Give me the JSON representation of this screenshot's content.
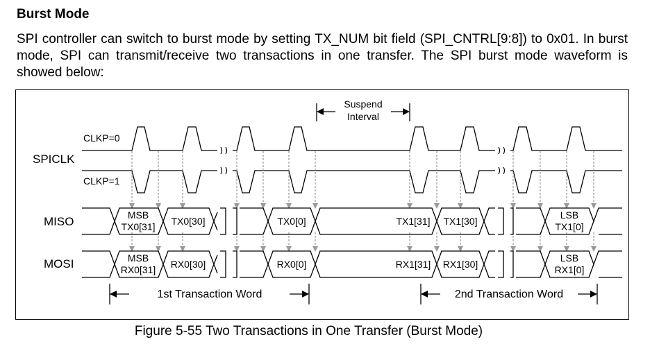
{
  "section": {
    "title": "Burst  Mode",
    "body": "SPI controller can switch to burst mode by setting TX_NUM bit field (SPI_CNTRL[9:8]) to 0x01. In burst mode, SPI can transmit/receive two transactions in one transfer. The SPI burst mode waveform is showed below:"
  },
  "figure": {
    "caption": "Figure 5-55 Two Transactions in One Transfer (Burst Mode)",
    "suspend_label_line1": "Suspend",
    "suspend_label_line2": "Interval",
    "signal_labels": {
      "spiclk": "SPICLK",
      "miso": "MISO",
      "mosi": "MOSI"
    },
    "clock_labels": {
      "clkp0": "CLKP=0",
      "clkp1": "CLKP=1"
    },
    "miso_cells": {
      "c1a": "MSB",
      "c1b": "TX0[31]",
      "c2": "TX0[30]",
      "c3": "TX0[0]",
      "c4": "TX1[31]",
      "c5": "TX1[30]",
      "c6a": "LSB",
      "c6b": "TX1[0]"
    },
    "mosi_cells": {
      "c1a": "MSB",
      "c1b": "RX0[31]",
      "c2": "RX0[30]",
      "c3": "RX0[0]",
      "c4": "RX1[31]",
      "c5": "RX1[30]",
      "c6a": "LSB",
      "c6b": "RX1[0]"
    },
    "transaction_labels": {
      "first": "1st Transaction Word",
      "second": "2nd Transaction Word"
    }
  }
}
